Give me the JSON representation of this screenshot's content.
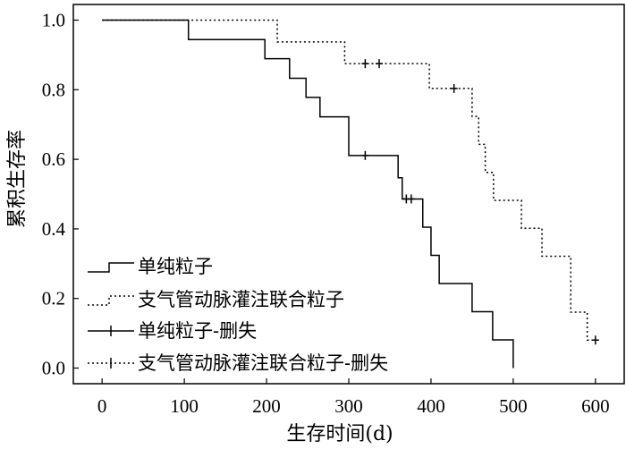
{
  "chart_data": {
    "type": "line",
    "subtype": "kaplan-meier step",
    "xlabel": "生存时间(d)",
    "ylabel": "累积生存率",
    "xlim": [
      -35,
      635
    ],
    "ylim": [
      -0.045,
      1.045
    ],
    "xticks": [
      0,
      100,
      200,
      300,
      400,
      500,
      600
    ],
    "yticks": [
      0.0,
      0.2,
      0.4,
      0.6,
      0.8,
      1.0
    ],
    "ytick_labels": [
      "0.0",
      "0.2",
      "0.4",
      "0.6",
      "0.8",
      "1.0"
    ],
    "legend_position": "bottom-left",
    "grid": false,
    "series": [
      {
        "name": "单纯粒子",
        "line_style": "solid",
        "color": "#000000",
        "x": [
          0,
          105,
          198,
          228,
          248,
          265,
          300,
          360,
          365,
          390,
          400,
          410,
          450,
          475,
          500
        ],
        "y": [
          1.0,
          0.944,
          0.889,
          0.833,
          0.778,
          0.722,
          0.611,
          0.547,
          0.486,
          0.405,
          0.324,
          0.243,
          0.162,
          0.081,
          0.0
        ]
      },
      {
        "name": "支气管动脉灌注联合粒子",
        "line_style": "dotted",
        "color": "#000000",
        "x": [
          0,
          213,
          295,
          398,
          450,
          458,
          466,
          476,
          510,
          535,
          570,
          590,
          600
        ],
        "y": [
          1.0,
          0.9375,
          0.875,
          0.8036,
          0.7232,
          0.6429,
          0.5625,
          0.4821,
          0.4018,
          0.3214,
          0.1607,
          0.0804,
          0.0804
        ]
      }
    ],
    "censored": [
      {
        "name": "单纯粒子-删失",
        "points": [
          [
            320,
            0.611
          ],
          [
            370,
            0.486
          ],
          [
            376,
            0.486
          ]
        ]
      },
      {
        "name": "支气管动脉灌注联合粒子-删失",
        "points": [
          [
            320,
            0.875
          ],
          [
            337,
            0.875
          ],
          [
            428,
            0.8036
          ],
          [
            600,
            0.0804
          ]
        ]
      }
    ]
  }
}
